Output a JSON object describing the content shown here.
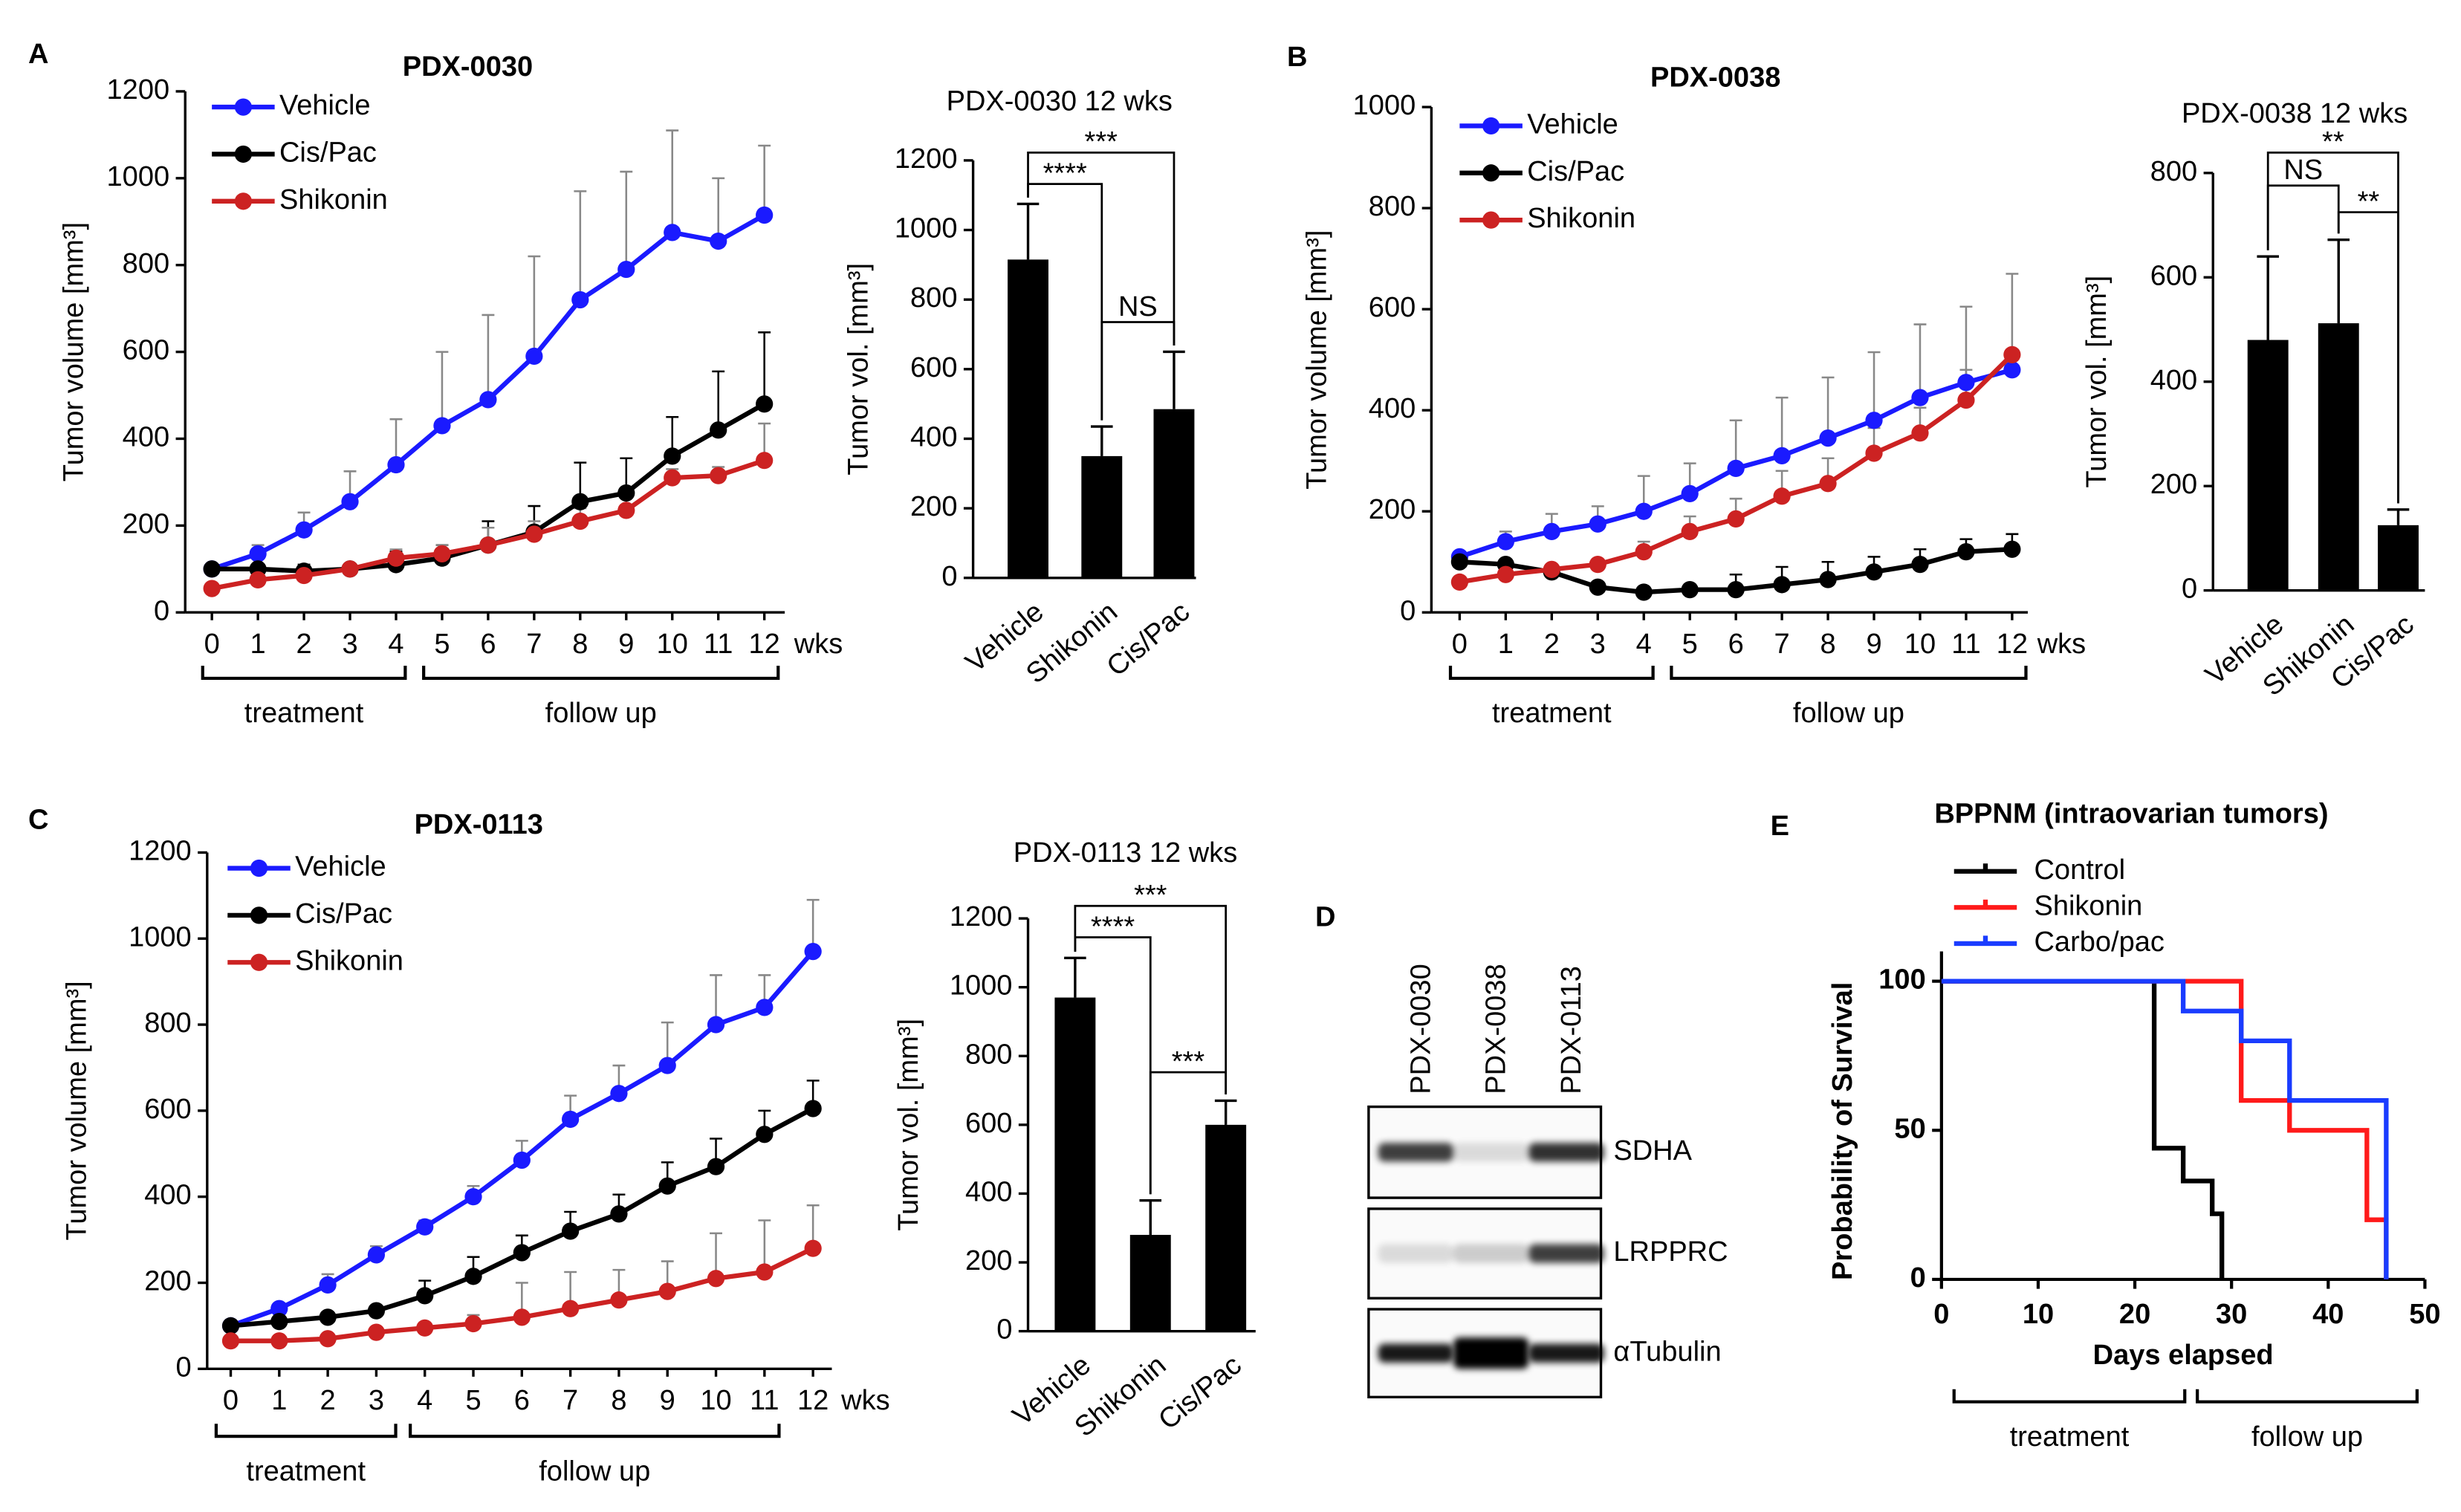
{
  "chart_data": [
    {
      "type": "line",
      "panel": "A",
      "title": "PDX-0030",
      "ylabel": "Tumor volume [mm³]",
      "x_unit": "wks",
      "categories": [
        "0",
        "1",
        "2",
        "3",
        "4",
        "5",
        "6",
        "7",
        "8",
        "9",
        "10",
        "11",
        "12"
      ],
      "ylim": [
        0,
        1200
      ],
      "yticks": [
        0,
        200,
        400,
        600,
        800,
        1000,
        1200
      ],
      "series": [
        {
          "name": "Vehicle",
          "color": "#1a1aff",
          "values": [
            100,
            135,
            190,
            255,
            340,
            430,
            490,
            590,
            720,
            790,
            875,
            855,
            915
          ],
          "errors": [
            10,
            20,
            40,
            70,
            105,
            170,
            195,
            230,
            250,
            225,
            235,
            145,
            160
          ]
        },
        {
          "name": "Cis/Pac",
          "color": "#000000",
          "values": [
            100,
            100,
            95,
            100,
            110,
            125,
            155,
            185,
            255,
            275,
            360,
            420,
            480
          ],
          "errors": [
            0,
            10,
            15,
            10,
            30,
            30,
            55,
            60,
            90,
            80,
            90,
            135,
            165
          ]
        },
        {
          "name": "Shikonin",
          "color": "#cc2222",
          "values": [
            55,
            75,
            85,
            100,
            125,
            135,
            155,
            180,
            210,
            235,
            310,
            315,
            350
          ],
          "errors": [
            0,
            5,
            10,
            10,
            20,
            20,
            40,
            30,
            30,
            30,
            20,
            20,
            85
          ]
        }
      ],
      "phases": [
        "treatment",
        "follow up"
      ]
    },
    {
      "type": "bar",
      "title": "PDX-0030 12 wks",
      "ylabel": "Tumor vol. [mm³]",
      "categories": [
        "Vehicle",
        "Shikonin",
        "Cis/Pac"
      ],
      "values": [
        915,
        350,
        485
      ],
      "errors": [
        160,
        85,
        165
      ],
      "color": "#000000",
      "ylim": [
        0,
        1200
      ],
      "yticks": [
        0,
        200,
        400,
        600,
        800,
        1000,
        1200
      ],
      "significance": [
        {
          "pair": [
            0,
            2
          ],
          "label": "***"
        },
        {
          "pair": [
            0,
            1
          ],
          "label": "****"
        },
        {
          "pair": [
            1,
            2
          ],
          "label": "NS"
        }
      ]
    },
    {
      "type": "line",
      "panel": "B",
      "title": "PDX-0038",
      "ylabel": "Tumor volume [mm³]",
      "x_unit": "wks",
      "categories": [
        "0",
        "1",
        "2",
        "3",
        "4",
        "5",
        "6",
        "7",
        "8",
        "9",
        "10",
        "11",
        "12"
      ],
      "ylim": [
        0,
        1000
      ],
      "yticks": [
        0,
        200,
        400,
        600,
        800,
        1000
      ],
      "series": [
        {
          "name": "Vehicle",
          "color": "#1a1aff",
          "values": [
            110,
            140,
            160,
            175,
            200,
            235,
            285,
            310,
            345,
            380,
            425,
            455,
            480
          ],
          "errors": [
            0,
            20,
            35,
            35,
            70,
            60,
            95,
            115,
            120,
            135,
            145,
            150,
            0
          ]
        },
        {
          "name": "Cis/Pac",
          "color": "#000000",
          "values": [
            100,
            95,
            80,
            50,
            40,
            45,
            45,
            55,
            65,
            80,
            95,
            120,
            125
          ],
          "errors": [
            0,
            5,
            5,
            5,
            10,
            10,
            30,
            35,
            35,
            30,
            30,
            25,
            30
          ]
        },
        {
          "name": "Shikonin",
          "color": "#cc2222",
          "values": [
            60,
            75,
            85,
            95,
            120,
            160,
            185,
            230,
            255,
            315,
            355,
            420,
            510
          ],
          "errors": [
            0,
            5,
            5,
            10,
            20,
            30,
            40,
            50,
            50,
            50,
            50,
            60,
            160
          ]
        }
      ],
      "phases": [
        "treatment",
        "follow up"
      ]
    },
    {
      "type": "bar",
      "title": "PDX-0038 12 wks",
      "ylabel": "Tumor vol. [mm³]",
      "categories": [
        "Vehicle",
        "Shikonin",
        "Cis/Pac"
      ],
      "values": [
        480,
        512,
        125
      ],
      "errors": [
        160,
        160,
        30
      ],
      "color": "#000000",
      "ylim": [
        0,
        800
      ],
      "yticks": [
        0,
        200,
        400,
        600,
        800
      ],
      "significance": [
        {
          "pair": [
            0,
            2
          ],
          "label": "**"
        },
        {
          "pair": [
            0,
            1
          ],
          "label": "NS"
        },
        {
          "pair": [
            1,
            2
          ],
          "label": "**"
        }
      ]
    },
    {
      "type": "line",
      "panel": "C",
      "title": "PDX-0113",
      "ylabel": "Tumor volume [mm³]",
      "x_unit": "wks",
      "categories": [
        "0",
        "1",
        "2",
        "3",
        "4",
        "5",
        "6",
        "7",
        "8",
        "9",
        "10",
        "11",
        "12"
      ],
      "ylim": [
        0,
        1200
      ],
      "yticks": [
        0,
        200,
        400,
        600,
        800,
        1000,
        1200
      ],
      "series": [
        {
          "name": "Vehicle",
          "color": "#1a1aff",
          "values": [
            100,
            140,
            195,
            265,
            330,
            400,
            485,
            580,
            640,
            705,
            800,
            840,
            970
          ],
          "errors": [
            0,
            10,
            25,
            20,
            15,
            25,
            45,
            55,
            65,
            100,
            115,
            75,
            120
          ]
        },
        {
          "name": "Cis/Pac",
          "color": "#000000",
          "values": [
            100,
            110,
            120,
            135,
            170,
            215,
            270,
            320,
            360,
            425,
            470,
            545,
            605
          ],
          "errors": [
            0,
            10,
            10,
            10,
            35,
            45,
            40,
            45,
            45,
            55,
            65,
            55,
            65
          ]
        },
        {
          "name": "Shikonin",
          "color": "#cc2222",
          "values": [
            65,
            65,
            70,
            85,
            95,
            105,
            120,
            140,
            160,
            180,
            210,
            225,
            280
          ],
          "errors": [
            0,
            5,
            5,
            10,
            10,
            20,
            80,
            85,
            70,
            70,
            105,
            120,
            100
          ]
        }
      ],
      "phases": [
        "treatment",
        "follow up"
      ]
    },
    {
      "type": "bar",
      "title": "PDX-0113 12 wks",
      "ylabel": "Tumor vol. [mm³]",
      "categories": [
        "Vehicle",
        "Shikonin",
        "Cis/Pac"
      ],
      "values": [
        970,
        280,
        600
      ],
      "errors": [
        115,
        100,
        70
      ],
      "color": "#000000",
      "ylim": [
        0,
        1200
      ],
      "yticks": [
        0,
        200,
        400,
        600,
        800,
        1000,
        1200
      ],
      "significance": [
        {
          "pair": [
            0,
            2
          ],
          "label": "***"
        },
        {
          "pair": [
            0,
            1
          ],
          "label": "****"
        },
        {
          "pair": [
            1,
            2
          ],
          "label": "***"
        }
      ]
    },
    {
      "type": "survival",
      "panel": "E",
      "title": "BPPNM (intraovarian tumors)",
      "xlabel": "Days elapsed",
      "ylabel": "Probability of Survival",
      "xlim": [
        0,
        50
      ],
      "xticks": [
        0,
        10,
        20,
        30,
        40,
        50
      ],
      "ylim": [
        0,
        110
      ],
      "yticks": [
        0,
        50,
        100
      ],
      "series": [
        {
          "name": "Control",
          "color": "#000000",
          "x": [
            0,
            22,
            25,
            28,
            29
          ],
          "values": [
            100,
            44,
            33,
            22,
            0
          ]
        },
        {
          "name": "Shikonin",
          "color": "#ff1a1a",
          "x": [
            0,
            31,
            36,
            44,
            46
          ],
          "values": [
            100,
            60,
            50,
            20,
            0
          ]
        },
        {
          "name": "Carbo/pac",
          "color": "#1a3cff",
          "x": [
            0,
            25,
            31,
            36,
            46
          ],
          "values": [
            100,
            90,
            80,
            60,
            0
          ]
        }
      ],
      "phases": [
        "treatment",
        "follow up"
      ]
    }
  ],
  "blot": {
    "panel": "D",
    "samples": [
      "PDX-0030",
      "PDX-0038",
      "PDX-0113"
    ],
    "proteins": [
      "SDHA",
      "LRPPRC",
      "αTubulin"
    ]
  }
}
